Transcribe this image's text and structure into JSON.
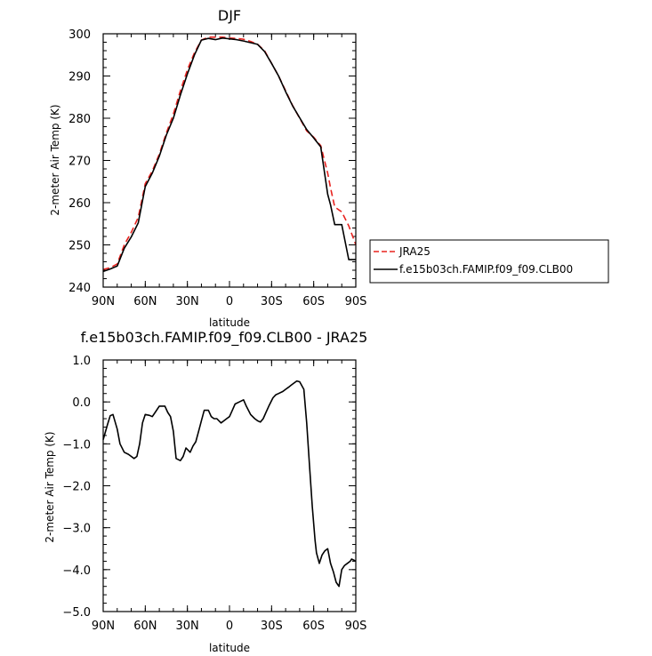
{
  "chart_data": [
    {
      "type": "line",
      "title": "DJF",
      "xlabel": "latitude",
      "ylabel": "2-meter Air Temp (K)",
      "xlim": [
        90,
        -90
      ],
      "ylim": [
        240,
        300
      ],
      "x_ticks": [
        {
          "v": 90,
          "label": "90N"
        },
        {
          "v": 60,
          "label": "60N"
        },
        {
          "v": 30,
          "label": "30N"
        },
        {
          "v": 0,
          "label": "0"
        },
        {
          "v": -30,
          "label": "30S"
        },
        {
          "v": -60,
          "label": "60S"
        },
        {
          "v": -90,
          "label": "90S"
        }
      ],
      "y_ticks": [
        {
          "v": 240,
          "label": "240"
        },
        {
          "v": 250,
          "label": "250"
        },
        {
          "v": 260,
          "label": "260"
        },
        {
          "v": 270,
          "label": "270"
        },
        {
          "v": 280,
          "label": "280"
        },
        {
          "v": 290,
          "label": "290"
        },
        {
          "v": 300,
          "label": "300"
        }
      ],
      "legend": {
        "position": "right"
      },
      "series": [
        {
          "name": "JRA25",
          "color": "#e8231f",
          "dash": true,
          "x": [
            90,
            85,
            80,
            75,
            70,
            65,
            60,
            55,
            50,
            45,
            40,
            35,
            30,
            25,
            20,
            15,
            10,
            5,
            0,
            -5,
            -10,
            -15,
            -20,
            -25,
            -30,
            -35,
            -40,
            -45,
            -50,
            -55,
            -60,
            -65,
            -70,
            -72,
            -75,
            -80,
            -85,
            -90
          ],
          "values": [
            244.2,
            244.6,
            245.5,
            250.0,
            253.0,
            256.5,
            264.5,
            267.5,
            271.5,
            276.5,
            281.0,
            286.5,
            291.5,
            295.5,
            298.5,
            299.2,
            299.2,
            299.2,
            299.0,
            298.9,
            298.7,
            298.2,
            297.5,
            296.0,
            293.0,
            290.0,
            286.5,
            283.0,
            280.0,
            277.0,
            275.5,
            273.5,
            267.0,
            263.5,
            259.0,
            257.8,
            254.5,
            250.0
          ]
        },
        {
          "name": "f.e15b03ch.FAMIP.f09_f09.CLB00",
          "color": "#000000",
          "dash": false,
          "x": [
            90,
            85,
            80,
            75,
            70,
            65,
            60,
            55,
            50,
            45,
            40,
            35,
            30,
            25,
            20,
            15,
            10,
            5,
            0,
            -5,
            -10,
            -15,
            -20,
            -25,
            -30,
            -35,
            -40,
            -45,
            -50,
            -55,
            -60,
            -65,
            -70,
            -72,
            -75,
            -80,
            -85,
            -90
          ],
          "values": [
            243.7,
            244.3,
            245.0,
            249.2,
            251.9,
            255.2,
            263.8,
            267.0,
            271.0,
            276.0,
            280.0,
            285.5,
            290.5,
            295.0,
            298.5,
            298.9,
            298.6,
            299.0,
            298.8,
            298.6,
            298.3,
            297.9,
            297.5,
            295.8,
            293.0,
            290.0,
            286.3,
            282.9,
            280.1,
            277.3,
            275.3,
            273.2,
            262.0,
            259.5,
            254.8,
            254.8,
            246.5,
            246.5
          ]
        }
      ]
    },
    {
      "type": "line",
      "title": "f.e15b03ch.FAMIP.f09_f09.CLB00 - JRA25",
      "xlabel": "latitude",
      "ylabel": "2-meter Air Temp (K)",
      "xlim": [
        90,
        -90
      ],
      "ylim": [
        -5.0,
        1.0
      ],
      "x_ticks": [
        {
          "v": 90,
          "label": "90N"
        },
        {
          "v": 60,
          "label": "60N"
        },
        {
          "v": 30,
          "label": "30N"
        },
        {
          "v": 0,
          "label": "0"
        },
        {
          "v": -30,
          "label": "30S"
        },
        {
          "v": -60,
          "label": "60S"
        },
        {
          "v": -90,
          "label": "90S"
        }
      ],
      "y_ticks": [
        {
          "v": 1.0,
          "label": "1.0"
        },
        {
          "v": 0.0,
          "label": "0.0"
        },
        {
          "v": -1.0,
          "label": "−1.0"
        },
        {
          "v": -2.0,
          "label": "−2.0"
        },
        {
          "v": -3.0,
          "label": "−3.0"
        },
        {
          "v": -4.0,
          "label": "−4.0"
        },
        {
          "v": -5.0,
          "label": "−5.0"
        }
      ],
      "series": [
        {
          "color": "#000000",
          "dash": false,
          "x": [
            90,
            87,
            85,
            83,
            80,
            78,
            75,
            72,
            70,
            68,
            66,
            64,
            62,
            60,
            57,
            55,
            53,
            50,
            48,
            46,
            44,
            42,
            40,
            38,
            35,
            33,
            31,
            28,
            26,
            24,
            22,
            20,
            18,
            15,
            13,
            11,
            9,
            6,
            4,
            2,
            0,
            -2,
            -4,
            -7,
            -10,
            -12,
            -15,
            -18,
            -20,
            -22,
            -24,
            -26,
            -28,
            -31,
            -33,
            -35,
            -38,
            -40,
            -42,
            -44,
            -46,
            -48,
            -50,
            -53,
            -55,
            -57,
            -59,
            -61,
            -62,
            -64,
            -66,
            -68,
            -70,
            -72,
            -74,
            -76,
            -78,
            -80,
            -82,
            -84,
            -86,
            -87,
            -89,
            -90
          ],
          "values": [
            -0.9,
            -0.55,
            -0.33,
            -0.3,
            -0.65,
            -1.0,
            -1.2,
            -1.25,
            -1.3,
            -1.35,
            -1.3,
            -1.0,
            -0.5,
            -0.3,
            -0.32,
            -0.35,
            -0.25,
            -0.1,
            -0.1,
            -0.1,
            -0.25,
            -0.35,
            -0.7,
            -1.35,
            -1.4,
            -1.3,
            -1.1,
            -1.2,
            -1.05,
            -0.95,
            -0.7,
            -0.45,
            -0.2,
            -0.2,
            -0.35,
            -0.4,
            -0.4,
            -0.5,
            -0.45,
            -0.4,
            -0.35,
            -0.2,
            -0.05,
            0.0,
            0.05,
            -0.1,
            -0.3,
            -0.4,
            -0.45,
            -0.48,
            -0.4,
            -0.25,
            -0.1,
            0.1,
            0.17,
            0.2,
            0.25,
            0.3,
            0.35,
            0.4,
            0.45,
            0.5,
            0.48,
            0.3,
            -0.5,
            -1.5,
            -2.5,
            -3.3,
            -3.6,
            -3.85,
            -3.65,
            -3.55,
            -3.5,
            -3.85,
            -4.05,
            -4.3,
            -4.4,
            -4.0,
            -3.9,
            -3.85,
            -3.8,
            -3.75,
            -3.78,
            -3.8
          ]
        }
      ]
    }
  ]
}
